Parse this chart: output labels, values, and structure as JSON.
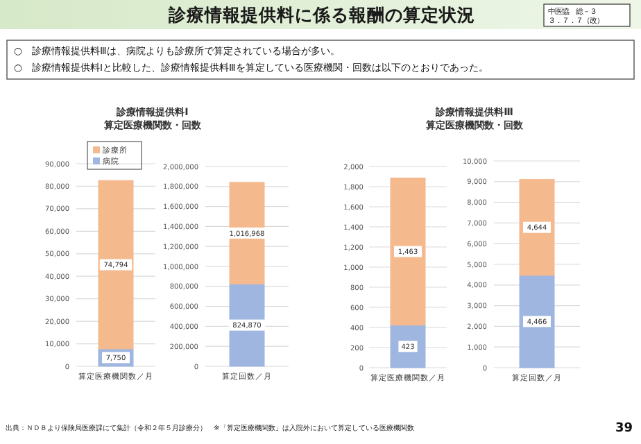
{
  "chart_data": [
    {
      "type": "other",
      "title": "診療情報提供料に係る報酬の算定状況",
      "annotations": [
        "中医協　総－３",
        "３．７．７（改）",
        "○　診療情報提供料Ⅲは、病院よりも診療所で算定されている場合が多い。",
        "○　診療情報提供料Ⅰと比較した、診療情報提供料Ⅲを算定している医療機関・回数は以下のとおりであった。",
        "出典：ＮＤＢより保険局医療課にて集計（令和２年５月診療分）　※「算定医療機関数」は入院外において算定している医療機関数",
        "39"
      ]
    },
    {
      "type": "bar",
      "stacked": true,
      "title": "診療情報提供料Ⅰ\n算定医療機関数・回数",
      "categories": [
        "算定医療機関数／月"
      ],
      "series": [
        {
          "name": "病院",
          "color": "#9fb6e0",
          "values": [
            7750
          ],
          "value_labels": [
            "7,750"
          ]
        },
        {
          "name": "診療所",
          "color": "#f5b98e",
          "values": [
            74794
          ],
          "value_labels": [
            "74,794"
          ]
        }
      ],
      "ylim": [
        0,
        90000
      ],
      "yticks": [
        0,
        {
          "value": 10000,
          "label": "10,000"
        },
        {
          "value": 20000,
          "label": "20,000"
        },
        {
          "value": 30000,
          "label": "30,000"
        },
        {
          "value": 40000,
          "label": "40,000"
        },
        {
          "value": 50000,
          "label": "50,000"
        },
        {
          "value": 60000,
          "label": "60,000"
        },
        {
          "value": 70000,
          "label": "70,000"
        },
        {
          "value": 80000,
          "label": "80,000"
        },
        {
          "value": 90000,
          "label": "90,000"
        }
      ],
      "grid": "y",
      "legend": "top"
    },
    {
      "type": "bar",
      "stacked": true,
      "categories": [
        "算定回数／月"
      ],
      "series": [
        {
          "color": "#9fb6e0",
          "values": [
            824870
          ],
          "value_labels": [
            "824,870"
          ]
        },
        {
          "color": "#f5b98e",
          "values": [
            1016968
          ],
          "value_labels": [
            "1,016,968"
          ]
        }
      ],
      "ylim": [
        0,
        2000000
      ],
      "yticks": [
        0,
        {
          "value": 200000,
          "label": "200,000"
        },
        {
          "value": 400000,
          "label": "400,000"
        },
        {
          "value": 600000,
          "label": "600,000"
        },
        {
          "value": 800000,
          "label": "800,000"
        },
        {
          "value": 1000000,
          "label": "1,000,000"
        },
        {
          "value": 1200000,
          "label": "1,200,000"
        },
        {
          "value": 1400000,
          "label": "1,400,000"
        },
        {
          "value": 1600000,
          "label": "1,600,000"
        },
        {
          "value": 1800000,
          "label": "1,800,000"
        },
        {
          "value": 2000000,
          "label": "2,000,000"
        }
      ],
      "grid": "y"
    },
    {
      "type": "bar",
      "stacked": true,
      "title": "診療情報提供料Ⅲ\n算定医療機関数・回数",
      "categories": [
        "算定医療機関数／月"
      ],
      "series": [
        {
          "color": "#9fb6e0",
          "values": [
            423
          ],
          "value_labels": [
            "423"
          ]
        },
        {
          "color": "#f5b98e",
          "values": [
            1463
          ],
          "value_labels": [
            "1,463"
          ]
        }
      ],
      "ylim": [
        0,
        2000
      ],
      "yticks": [
        0,
        200,
        400,
        600,
        800,
        {
          "value": 1000,
          "label": "1,000"
        },
        {
          "value": 1200,
          "label": "1,200"
        },
        {
          "value": 1400,
          "label": "1,400"
        },
        {
          "value": 1600,
          "label": "1,600"
        },
        {
          "value": 1800,
          "label": "1,800"
        },
        {
          "value": 2000,
          "label": "2,000"
        }
      ],
      "grid": "y"
    },
    {
      "type": "bar",
      "stacked": true,
      "categories": [
        "算定回数／月"
      ],
      "series": [
        {
          "color": "#9fb6e0",
          "values": [
            4466
          ],
          "value_labels": [
            "4,466"
          ]
        },
        {
          "color": "#f5b98e",
          "values": [
            4644
          ],
          "value_labels": [
            "4,644"
          ]
        }
      ],
      "ylim": [
        0,
        10000
      ],
      "yticks": [
        0,
        {
          "value": 1000,
          "label": "1,000"
        },
        {
          "value": 2000,
          "label": "2,000"
        },
        {
          "value": 3000,
          "label": "3,000"
        },
        {
          "value": 4000,
          "label": "4,000"
        },
        {
          "value": 5000,
          "label": "5,000"
        },
        {
          "value": 6000,
          "label": "6,000"
        },
        {
          "value": 7000,
          "label": "7,000"
        },
        {
          "value": 8000,
          "label": "8,000"
        },
        {
          "value": 9000,
          "label": "9,000"
        },
        {
          "value": 10000,
          "label": "10,000"
        }
      ],
      "grid": "y"
    }
  ]
}
